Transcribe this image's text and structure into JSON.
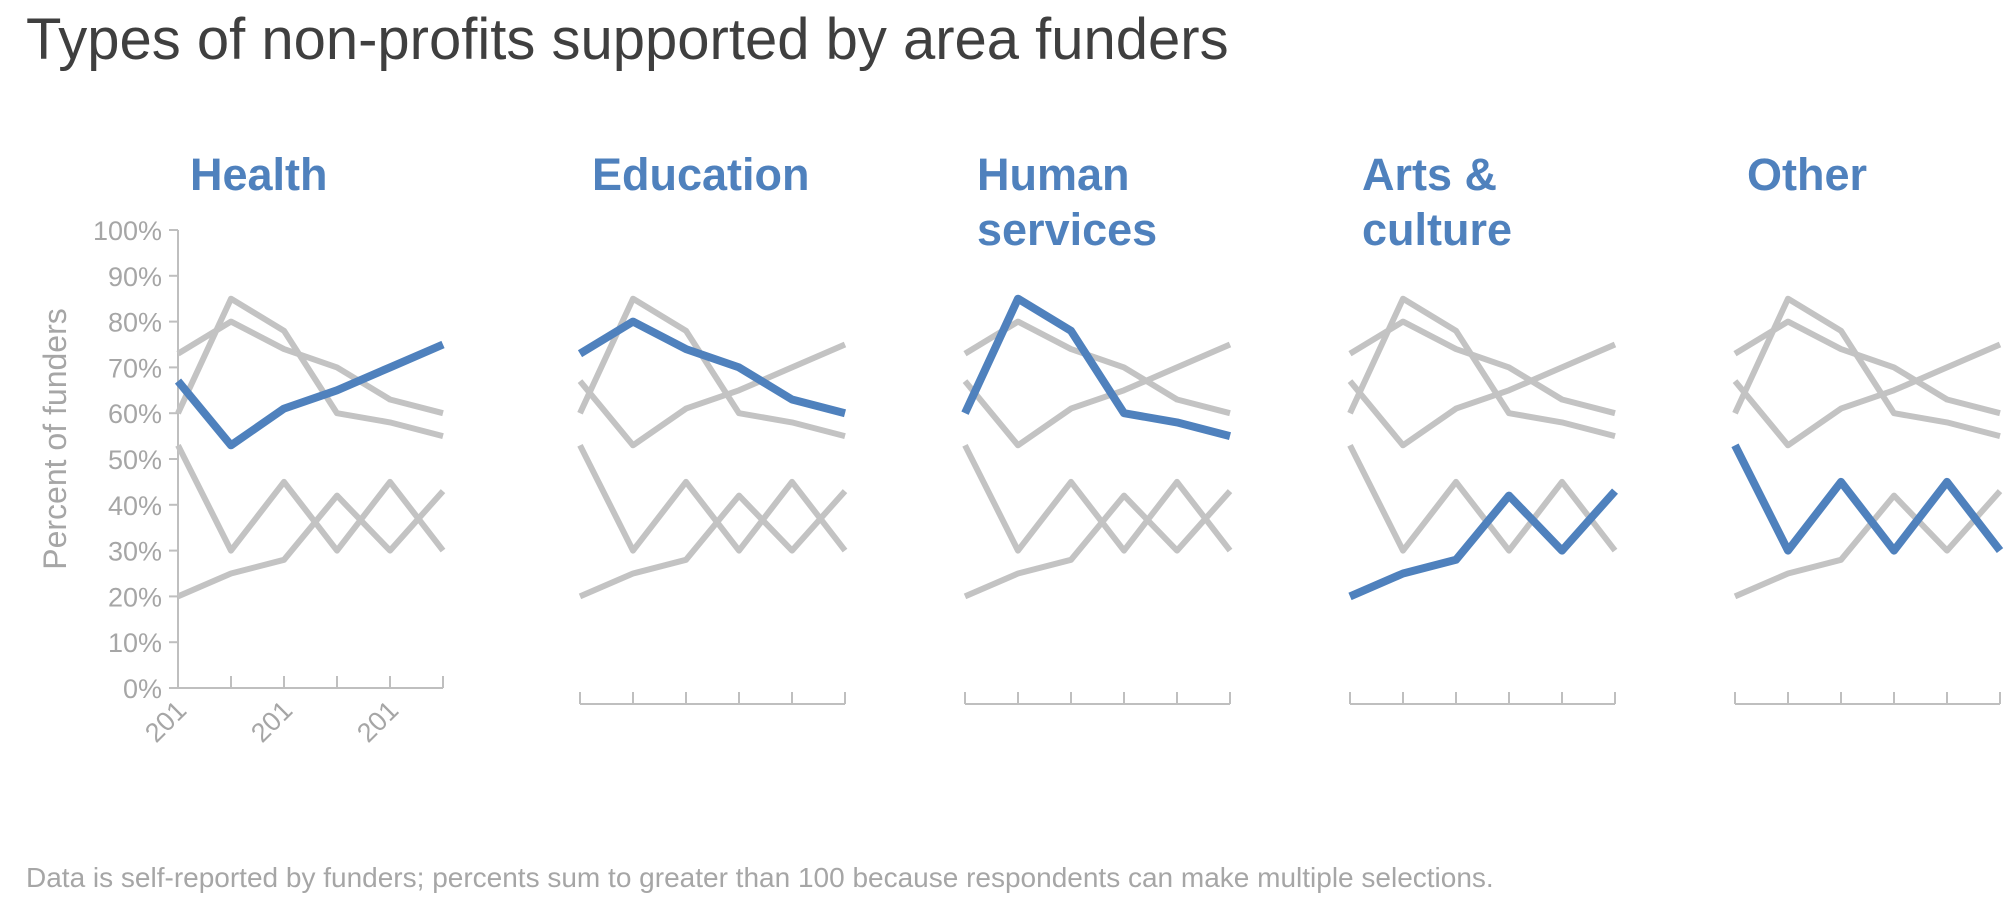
{
  "title": "Types of non-profits supported by area funders",
  "footnote": "Data is self-reported by funders; percents sum to greater than 100 because respondents can make multiple selections.",
  "colors": {
    "highlight": "#4f81bd",
    "context": "#c3c3c3",
    "axis": "#bfbfbf",
    "text": "#a6a6a6",
    "title": "#3f3f3f"
  },
  "chart_data": {
    "type": "line",
    "layout": "small multiples",
    "ylabel": "Percent of funders",
    "ylim": [
      0,
      100
    ],
    "y_ticks": [
      "0%",
      "10%",
      "20%",
      "30%",
      "40%",
      "50%",
      "60%",
      "70%",
      "80%",
      "90%",
      "100%"
    ],
    "x_tick_labels": [
      "201",
      "201",
      "201"
    ],
    "grid": false,
    "panels": [
      {
        "title": "Health",
        "highlight": "Health"
      },
      {
        "title": "Education",
        "highlight": "Education"
      },
      {
        "title": "Human services",
        "highlight": "Human services"
      },
      {
        "title": "Arts & culture",
        "highlight": "Arts & culture"
      },
      {
        "title": "Other",
        "highlight": "Other"
      }
    ],
    "series": [
      {
        "name": "Health",
        "values": [
          67,
          53,
          61,
          65,
          70,
          75
        ]
      },
      {
        "name": "Education",
        "values": [
          73,
          80,
          74,
          70,
          63,
          60
        ]
      },
      {
        "name": "Human services",
        "values": [
          60,
          85,
          78,
          60,
          58,
          55
        ]
      },
      {
        "name": "Arts & culture",
        "values": [
          20,
          25,
          28,
          42,
          30,
          43
        ]
      },
      {
        "name": "Other",
        "values": [
          53,
          30,
          45,
          30,
          45,
          30
        ]
      }
    ]
  }
}
